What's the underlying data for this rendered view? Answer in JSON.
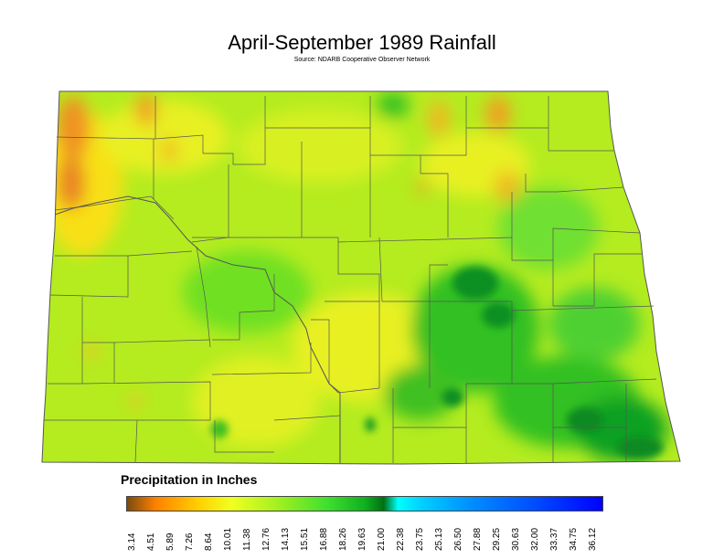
{
  "title": "April-September 1989 Rainfall",
  "source": "Source: NDARB Cooperative Observer Network",
  "legend": {
    "title": "Precipitation in Inches",
    "ticks": [
      "3.14",
      "4.51",
      "5.89",
      "7.26",
      "8.64",
      "10.01",
      "11.38",
      "12.76",
      "14.13",
      "15.51",
      "16.88",
      "18.26",
      "19.63",
      "21.00",
      "22.38",
      "23.75",
      "25.13",
      "26.50",
      "27.88",
      "29.25",
      "30.63",
      "32.00",
      "33.37",
      "34.75",
      "36.12"
    ]
  },
  "colors": {
    "dry": "#ff8000",
    "moderate": "#c8f020",
    "wet": "#10a020",
    "county_lines": "#555555"
  }
}
